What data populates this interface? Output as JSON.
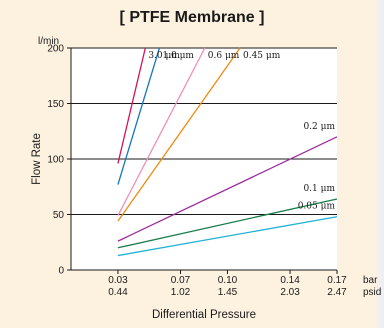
{
  "chart_data": {
    "type": "line",
    "title": "[ PTFE Membrane ]",
    "xlabel": "Differential Pressure",
    "ylabel": "Flow Rate",
    "y_unit": "l/min",
    "x_units": [
      "bar",
      "psid"
    ],
    "xlim": [
      0,
      0.17
    ],
    "ylim": [
      0,
      200
    ],
    "grid": "horizontal",
    "x_ticks": [
      {
        "value": 0.03,
        "bar": "0.03",
        "psid": "0.44"
      },
      {
        "value": 0.07,
        "bar": "0.07",
        "psid": "1.02"
      },
      {
        "value": 0.1,
        "bar": "0.10",
        "psid": "1.45"
      },
      {
        "value": 0.14,
        "bar": "0.14",
        "psid": "2.03"
      },
      {
        "value": 0.17,
        "bar": "0.17",
        "psid": "2.47"
      }
    ],
    "y_ticks": [
      0,
      50,
      100,
      150,
      200
    ],
    "series": [
      {
        "name": "3.0 μm",
        "color": "#d4145a",
        "points": [
          [
            0.03,
            96
          ],
          [
            0.0475,
            200
          ]
        ]
      },
      {
        "name": "1.0 μm",
        "color": "#1577c0",
        "points": [
          [
            0.03,
            77
          ],
          [
            0.0565,
            200
          ]
        ]
      },
      {
        "name": "0.6 μm",
        "color": "#f08fb8",
        "points": [
          [
            0.03,
            49
          ],
          [
            0.0855,
            200
          ]
        ]
      },
      {
        "name": "0.45 μm",
        "color": "#f08a10",
        "points": [
          [
            0.03,
            44
          ],
          [
            0.108,
            200
          ]
        ]
      },
      {
        "name": "0.2 μm",
        "color": "#9a2e9e",
        "points": [
          [
            0.03,
            26
          ],
          [
            0.17,
            120
          ]
        ]
      },
      {
        "name": "0.1 μm",
        "color": "#1a7d4a",
        "points": [
          [
            0.03,
            20
          ],
          [
            0.17,
            64
          ]
        ]
      },
      {
        "name": "0.05 μm",
        "color": "#21b3d4",
        "points": [
          [
            0.03,
            13
          ],
          [
            0.17,
            48
          ]
        ]
      }
    ]
  }
}
